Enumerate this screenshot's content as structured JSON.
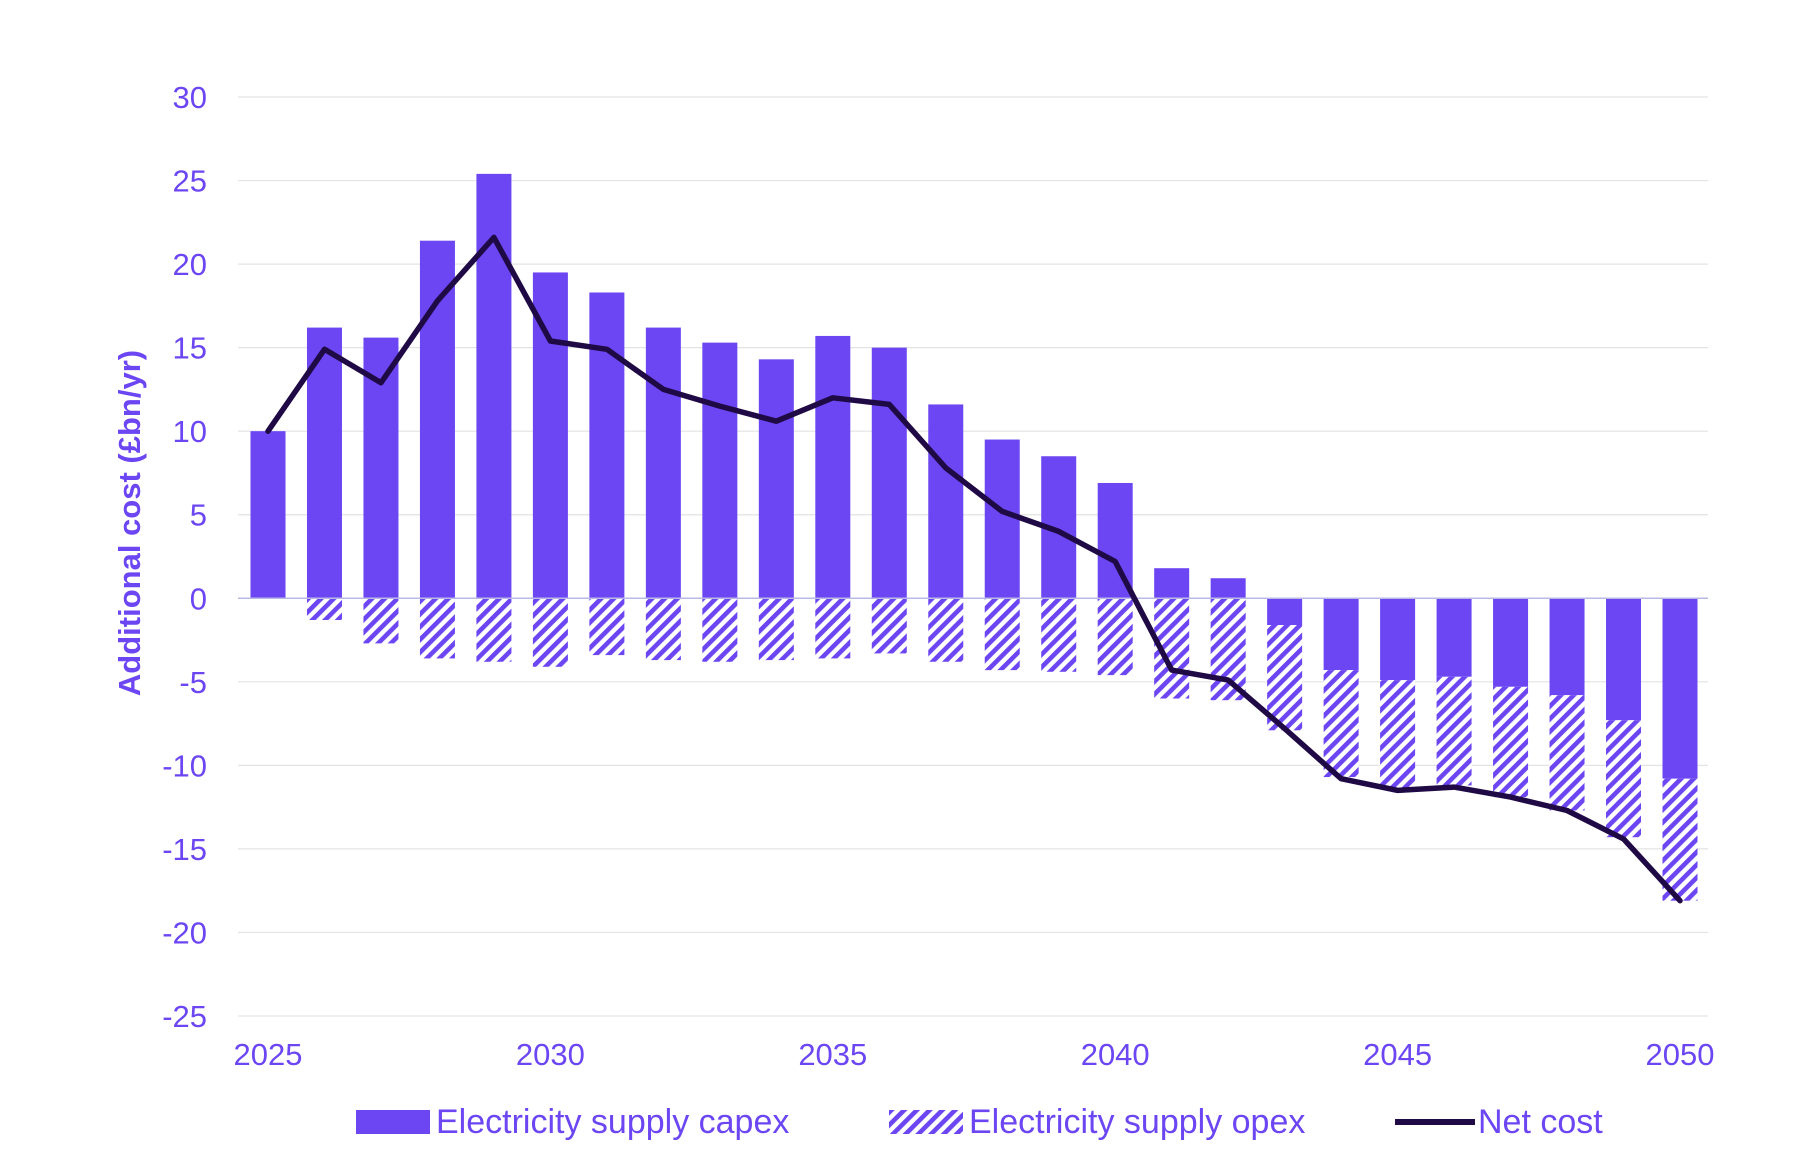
{
  "chart_data": {
    "type": "bar",
    "ylabel": "Additional cost (£bn/yr)",
    "xlabel": "",
    "ylim": [
      -25,
      30
    ],
    "yticks": [
      30,
      25,
      20,
      15,
      10,
      5,
      0,
      -5,
      -10,
      -15,
      -20,
      -25
    ],
    "xticks": [
      "2025",
      "2030",
      "2035",
      "2040",
      "2045",
      "2050"
    ],
    "grid": true,
    "legend_position": "bottom",
    "colors": {
      "capex": "#6b46f2",
      "opex": "#6b46f2",
      "net": "#1f0a45"
    },
    "x": [
      2025,
      2026,
      2027,
      2028,
      2029,
      2030,
      2031,
      2032,
      2033,
      2034,
      2035,
      2036,
      2037,
      2038,
      2039,
      2040,
      2041,
      2042,
      2043,
      2044,
      2045,
      2046,
      2047,
      2048,
      2049,
      2050
    ],
    "series": [
      {
        "name": "Electricity supply capex",
        "style": "solid",
        "values": [
          10.0,
          16.2,
          15.6,
          21.4,
          25.4,
          19.5,
          18.3,
          16.2,
          15.3,
          14.3,
          15.7,
          15.0,
          11.6,
          9.5,
          8.5,
          6.9,
          1.8,
          1.2,
          -1.6,
          -4.3,
          -4.9,
          -4.7,
          -5.3,
          -5.8,
          -7.3,
          -10.8
        ]
      },
      {
        "name": "Electricity supply opex",
        "style": "hatched",
        "values": [
          0.0,
          -1.3,
          -2.7,
          -3.6,
          -3.8,
          -4.1,
          -3.4,
          -3.7,
          -3.8,
          -3.7,
          -3.6,
          -3.3,
          -3.8,
          -4.3,
          -4.4,
          -4.6,
          -6.0,
          -6.1,
          -6.3,
          -6.4,
          -6.5,
          -6.5,
          -6.6,
          -6.9,
          -7.0,
          -7.3
        ]
      },
      {
        "name": "Net cost",
        "style": "line",
        "values": [
          10.0,
          14.9,
          12.9,
          17.8,
          21.6,
          15.4,
          14.9,
          12.5,
          11.5,
          10.6,
          12.0,
          11.6,
          7.8,
          5.2,
          4.0,
          2.2,
          -4.3,
          -4.9,
          -7.8,
          -10.8,
          -11.5,
          -11.3,
          -11.9,
          -12.7,
          -14.4,
          -18.1
        ]
      }
    ]
  }
}
